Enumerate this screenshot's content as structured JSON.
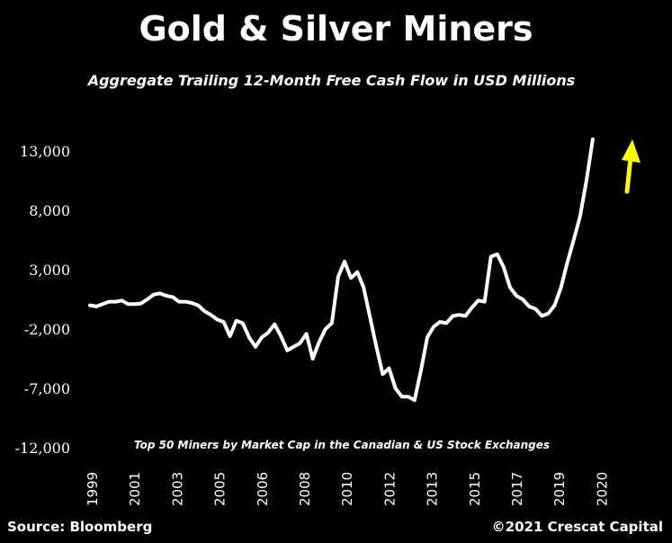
{
  "chart_data": {
    "type": "line",
    "title": "Gold & Silver Miners",
    "subtitle": "Aggregate Trailing 12-Month Free Cash Flow in USD Millions",
    "annotation": "Top 50 Miners by Market Cap in the Canadian & US Stock Exchanges",
    "source": "Source: Bloomberg",
    "copyright": "©2021 Crescat Capital",
    "xlabel": "",
    "ylabel": "",
    "ylim": [
      -12000,
      13000
    ],
    "y_ticks": [
      13000,
      8000,
      3000,
      -2000,
      -7000,
      -12000
    ],
    "y_tick_labels": [
      "13,000",
      "8,000",
      "3,000",
      "-2,000",
      "-7,000",
      "-12,000"
    ],
    "x_tick_labels": [
      "1999",
      "2001",
      "2003",
      "2005",
      "2006",
      "2008",
      "2010",
      "2012",
      "2013",
      "2015",
      "2017",
      "2019",
      "2020"
    ],
    "grid": false,
    "legend": "none",
    "series_color": "#ffffff",
    "arrow_color": "#ffff00",
    "series": [
      {
        "values": [
          [
            0.0,
            0
          ],
          [
            0.5,
            -100
          ],
          [
            1.0,
            100
          ],
          [
            1.5,
            300
          ],
          [
            2.0,
            300
          ],
          [
            2.5,
            400
          ],
          [
            3.0,
            100
          ],
          [
            3.5,
            100
          ],
          [
            4.0,
            150
          ],
          [
            4.5,
            500
          ],
          [
            5.0,
            900
          ],
          [
            5.5,
            1000
          ],
          [
            6.0,
            800
          ],
          [
            6.5,
            700
          ],
          [
            7.0,
            300
          ],
          [
            7.5,
            300
          ],
          [
            8.0,
            200
          ],
          [
            8.5,
            0
          ],
          [
            9.0,
            -500
          ],
          [
            9.5,
            -800
          ],
          [
            10.0,
            -1200
          ],
          [
            10.5,
            -1400
          ],
          [
            11.0,
            -2600
          ],
          [
            11.5,
            -1300
          ],
          [
            12.0,
            -1500
          ],
          [
            12.5,
            -2700
          ],
          [
            13.0,
            -3500
          ],
          [
            13.5,
            -2700
          ],
          [
            14.0,
            -2300
          ],
          [
            14.5,
            -1600
          ],
          [
            15.0,
            -2600
          ],
          [
            15.5,
            -3800
          ],
          [
            16.0,
            -3500
          ],
          [
            16.5,
            -3200
          ],
          [
            17.0,
            -2400
          ],
          [
            17.5,
            -4500
          ],
          [
            18.0,
            -3100
          ],
          [
            18.5,
            -2000
          ],
          [
            19.0,
            -1500
          ],
          [
            19.5,
            2400
          ],
          [
            20.0,
            3700
          ],
          [
            20.5,
            2300
          ],
          [
            21.0,
            2800
          ],
          [
            21.5,
            1500
          ],
          [
            22.0,
            -1000
          ],
          [
            22.5,
            -3500
          ],
          [
            23.0,
            -5800
          ],
          [
            23.5,
            -5300
          ],
          [
            24.0,
            -7000
          ],
          [
            24.5,
            -7700
          ],
          [
            25.0,
            -7700
          ],
          [
            25.5,
            -8000
          ],
          [
            26.0,
            -5500
          ],
          [
            26.5,
            -2700
          ],
          [
            27.0,
            -1800
          ],
          [
            27.5,
            -1400
          ],
          [
            28.0,
            -1500
          ],
          [
            28.5,
            -900
          ],
          [
            29.0,
            -800
          ],
          [
            29.5,
            -900
          ],
          [
            30.0,
            -200
          ],
          [
            30.5,
            400
          ],
          [
            31.0,
            300
          ],
          [
            31.5,
            4100
          ],
          [
            32.0,
            4300
          ],
          [
            32.5,
            3200
          ],
          [
            33.0,
            1500
          ],
          [
            33.5,
            800
          ],
          [
            34.0,
            500
          ],
          [
            34.5,
            -100
          ],
          [
            35.0,
            -300
          ],
          [
            35.5,
            -900
          ],
          [
            36.0,
            -700
          ],
          [
            36.5,
            0
          ],
          [
            37.0,
            1500
          ],
          [
            37.5,
            3600
          ],
          [
            38.0,
            5500
          ],
          [
            38.5,
            7500
          ],
          [
            39.0,
            10500
          ],
          [
            39.5,
            14000
          ]
        ]
      }
    ]
  }
}
